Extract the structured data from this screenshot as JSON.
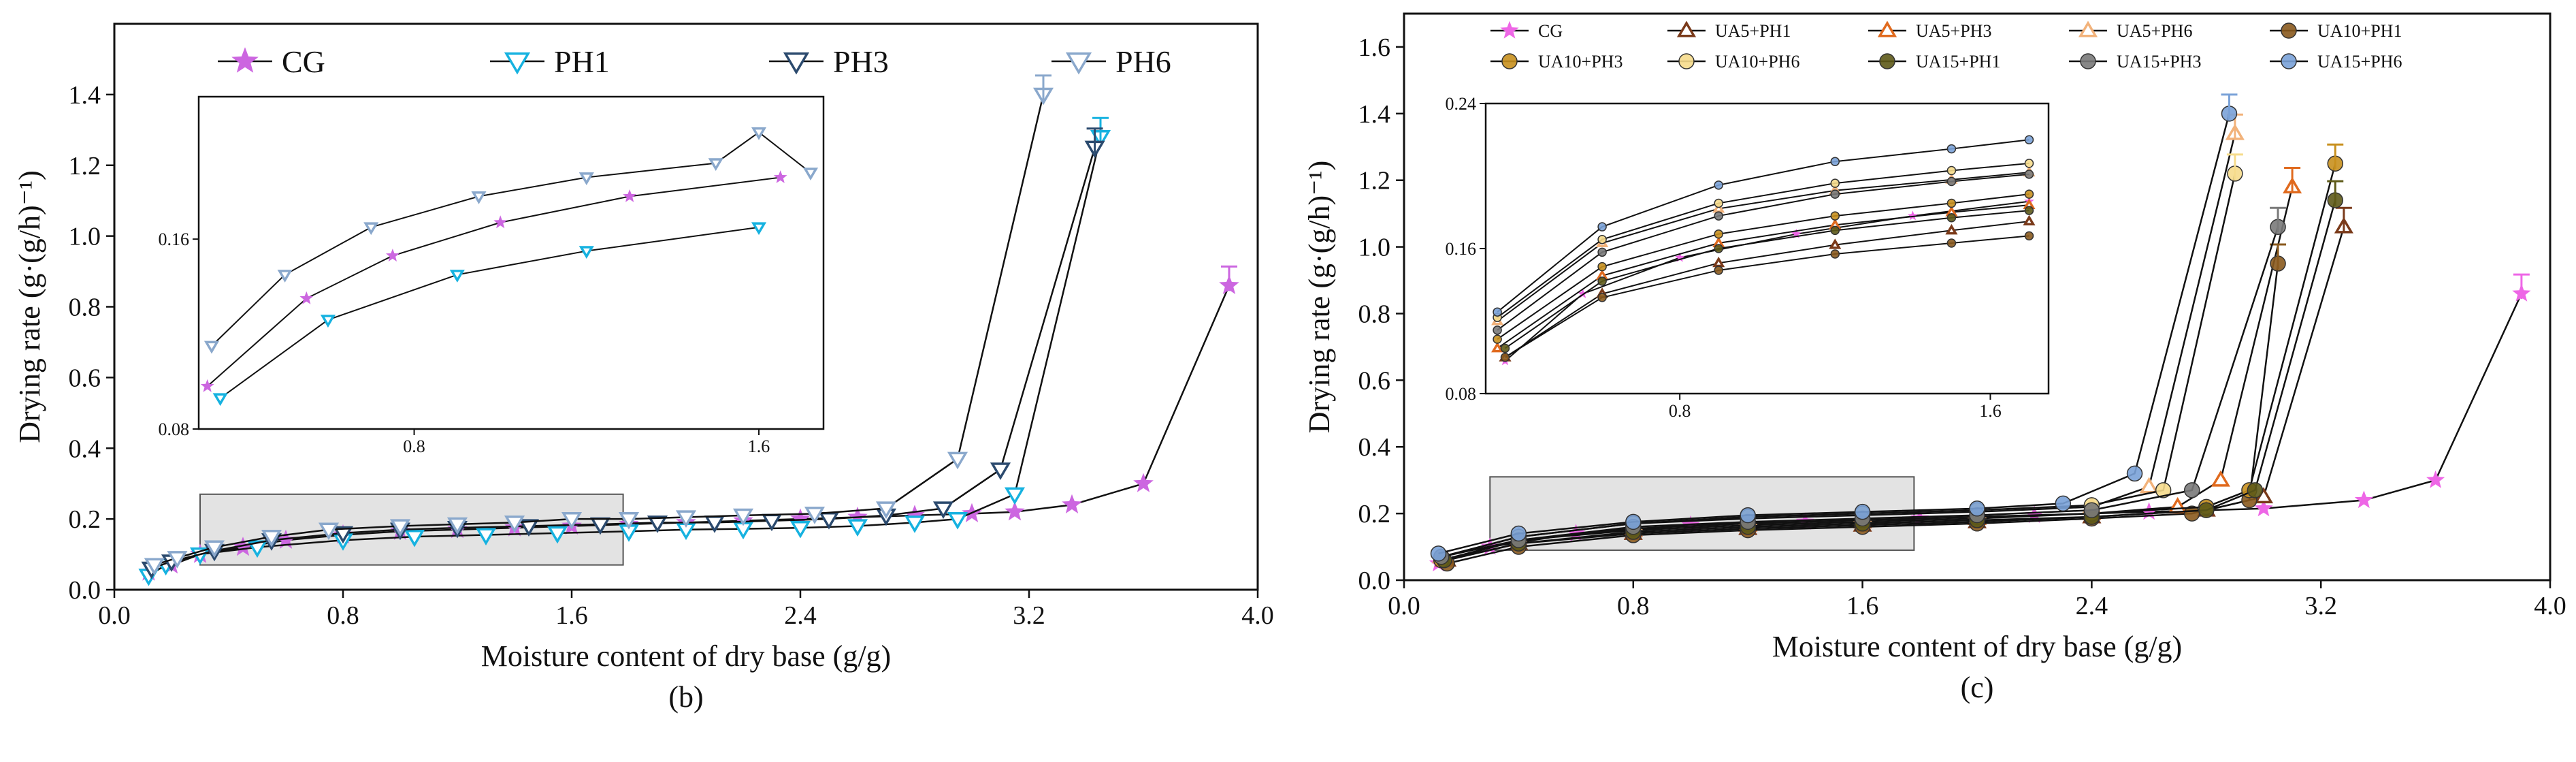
{
  "chart_data": [
    {
      "type": "line",
      "panel_label": "(b)",
      "title": "",
      "xlabel": "Moisture content of dry base (g/g)",
      "ylabel": "Drying rate (g·(g/h)⁻¹)",
      "xlim": [
        0.0,
        4.0
      ],
      "ylim": [
        0.0,
        1.6
      ],
      "xticks": [
        "0.0",
        "0.8",
        "1.6",
        "2.4",
        "3.2",
        "4.0"
      ],
      "yticks": [
        "0.0",
        "0.2",
        "0.4",
        "0.6",
        "0.8",
        "1.0",
        "1.2",
        "1.4"
      ],
      "legend": [
        "CG",
        "PH1",
        "PH3",
        "PH6"
      ],
      "legend_position": "top",
      "series": [
        {
          "name": "CG",
          "color": "#cc66e0",
          "marker": "star",
          "x": [
            0.12,
            0.2,
            0.3,
            0.45,
            0.6,
            0.8,
            1.0,
            1.2,
            1.4,
            1.6,
            1.8,
            2.0,
            2.2,
            2.4,
            2.6,
            2.8,
            3.0,
            3.15,
            3.35,
            3.6,
            3.9
          ],
          "y": [
            0.05,
            0.07,
            0.1,
            0.12,
            0.14,
            0.155,
            0.165,
            0.17,
            0.175,
            0.18,
            0.185,
            0.19,
            0.195,
            0.2,
            0.205,
            0.21,
            0.215,
            0.22,
            0.24,
            0.3,
            0.86
          ]
        },
        {
          "name": "PH1",
          "color": "#16b2e0",
          "marker": "triangle-down",
          "x": [
            0.12,
            0.18,
            0.3,
            0.5,
            0.8,
            1.05,
            1.3,
            1.55,
            1.8,
            2.0,
            2.2,
            2.4,
            2.6,
            2.8,
            2.95,
            3.15,
            3.45
          ],
          "y": [
            0.04,
            0.07,
            0.1,
            0.12,
            0.14,
            0.15,
            0.155,
            0.16,
            0.165,
            0.17,
            0.172,
            0.175,
            0.18,
            0.19,
            0.2,
            0.27,
            1.28
          ]
        },
        {
          "name": "PH3",
          "color": "#2b4a6e",
          "marker": "triangle-down",
          "x": [
            0.13,
            0.2,
            0.35,
            0.55,
            0.8,
            1.0,
            1.2,
            1.45,
            1.7,
            1.9,
            2.1,
            2.3,
            2.5,
            2.7,
            2.9,
            3.1,
            3.43
          ],
          "y": [
            0.06,
            0.08,
            0.11,
            0.14,
            0.16,
            0.17,
            0.175,
            0.18,
            0.185,
            0.19,
            0.19,
            0.195,
            0.2,
            0.21,
            0.23,
            0.34,
            1.25
          ]
        },
        {
          "name": "PH6",
          "color": "#8aa8cc",
          "marker": "triangle-down",
          "x": [
            0.14,
            0.22,
            0.35,
            0.55,
            0.75,
            1.0,
            1.2,
            1.4,
            1.6,
            1.8,
            2.0,
            2.2,
            2.45,
            2.7,
            2.95,
            3.25
          ],
          "y": [
            0.07,
            0.09,
            0.12,
            0.15,
            0.17,
            0.18,
            0.185,
            0.19,
            0.2,
            0.2,
            0.205,
            0.21,
            0.215,
            0.23,
            0.37,
            1.4
          ]
        }
      ],
      "inset": {
        "xlim": [
          0.3,
          1.75
        ],
        "ylim": [
          0.08,
          0.22
        ],
        "xticks": [
          "0.8",
          "1.6"
        ],
        "yticks": [
          "0.08",
          "0.16"
        ],
        "series": [
          {
            "name": "CG",
            "x": [
              0.32,
              0.55,
              0.75,
              1.0,
              1.3,
              1.65
            ],
            "y": [
              0.098,
              0.135,
              0.153,
              0.167,
              0.178,
              0.186
            ]
          },
          {
            "name": "PH1",
            "x": [
              0.35,
              0.6,
              0.9,
              1.2,
              1.6
            ],
            "y": [
              0.093,
              0.126,
              0.145,
              0.155,
              0.165
            ]
          },
          {
            "name": "PH6",
            "x": [
              0.33,
              0.5,
              0.7,
              0.95,
              1.2,
              1.5,
              1.6,
              1.72
            ],
            "y": [
              0.115,
              0.145,
              0.165,
              0.178,
              0.186,
              0.192,
              0.205,
              0.188
            ]
          }
        ]
      }
    },
    {
      "type": "line",
      "panel_label": "(c)",
      "title": "",
      "xlabel": "Moisture content of dry base (g/g)",
      "ylabel": "Drying rate (g·(g/h)⁻¹)",
      "xlim": [
        0.0,
        4.0
      ],
      "ylim": [
        0.0,
        1.7
      ],
      "xticks": [
        "0.0",
        "0.8",
        "1.6",
        "2.4",
        "3.2",
        "4.0"
      ],
      "yticks": [
        "0.0",
        "0.2",
        "0.4",
        "0.6",
        "0.8",
        "1.0",
        "1.2",
        "1.4",
        "1.6"
      ],
      "legend": [
        "CG",
        "UA5+PH1",
        "UA5+PH3",
        "UA5+PH6",
        "UA10+PH1",
        "UA10+PH3",
        "UA10+PH6",
        "UA15+PH1",
        "UA15+PH3",
        "UA15+PH6"
      ],
      "legend_position": "top",
      "series": [
        {
          "name": "CG",
          "color": "#ee66e6",
          "marker": "star",
          "x": [
            0.12,
            0.3,
            0.6,
            1.0,
            1.4,
            1.8,
            2.2,
            2.6,
            3.0,
            3.35,
            3.6,
            3.9
          ],
          "y": [
            0.05,
            0.1,
            0.14,
            0.165,
            0.175,
            0.185,
            0.195,
            0.205,
            0.215,
            0.24,
            0.3,
            0.86
          ]
        },
        {
          "name": "UA5+PH1",
          "color": "#7a3a1a",
          "marker": "triangle-up",
          "x": [
            0.15,
            0.4,
            0.8,
            1.2,
            1.6,
            2.0,
            2.4,
            2.8,
            3.0,
            3.28
          ],
          "y": [
            0.06,
            0.11,
            0.14,
            0.155,
            0.165,
            0.175,
            0.19,
            0.21,
            0.25,
            1.06
          ]
        },
        {
          "name": "UA5+PH3",
          "color": "#e06a1e",
          "marker": "triangle-up",
          "x": [
            0.14,
            0.4,
            0.8,
            1.2,
            1.6,
            2.0,
            2.4,
            2.7,
            2.85,
            3.1
          ],
          "y": [
            0.06,
            0.12,
            0.15,
            0.165,
            0.175,
            0.185,
            0.2,
            0.22,
            0.3,
            1.18
          ]
        },
        {
          "name": "UA5+PH6",
          "color": "#f2b27a",
          "marker": "triangle-up",
          "x": [
            0.13,
            0.4,
            0.8,
            1.2,
            1.6,
            2.0,
            2.4,
            2.6,
            2.9
          ],
          "y": [
            0.07,
            0.13,
            0.17,
            0.185,
            0.195,
            0.205,
            0.22,
            0.28,
            1.34
          ]
        },
        {
          "name": "UA10+PH1",
          "color": "#8a5a1e",
          "marker": "circle",
          "x": [
            0.15,
            0.4,
            0.8,
            1.2,
            1.6,
            2.0,
            2.4,
            2.75,
            2.95,
            3.05
          ],
          "y": [
            0.05,
            0.1,
            0.135,
            0.15,
            0.16,
            0.17,
            0.185,
            0.2,
            0.24,
            0.95
          ]
        },
        {
          "name": "UA10+PH3",
          "color": "#c8901e",
          "marker": "circle",
          "x": [
            0.13,
            0.4,
            0.8,
            1.2,
            1.6,
            2.0,
            2.4,
            2.8,
            2.95,
            3.25
          ],
          "y": [
            0.06,
            0.12,
            0.155,
            0.17,
            0.18,
            0.19,
            0.2,
            0.22,
            0.27,
            1.25
          ]
        },
        {
          "name": "UA10+PH6",
          "color": "#f6dc8c",
          "marker": "circle",
          "x": [
            0.13,
            0.4,
            0.8,
            1.2,
            1.6,
            2.0,
            2.4,
            2.65,
            2.9
          ],
          "y": [
            0.07,
            0.13,
            0.17,
            0.19,
            0.2,
            0.21,
            0.225,
            0.27,
            1.22
          ]
        },
        {
          "name": "UA15+PH1",
          "color": "#5e5a18",
          "marker": "circle",
          "x": [
            0.14,
            0.4,
            0.8,
            1.2,
            1.6,
            2.0,
            2.4,
            2.8,
            2.97,
            3.25
          ],
          "y": [
            0.06,
            0.11,
            0.145,
            0.16,
            0.17,
            0.18,
            0.19,
            0.21,
            0.27,
            1.14
          ]
        },
        {
          "name": "UA15+PH3",
          "color": "#7a7a7a",
          "marker": "circle",
          "x": [
            0.13,
            0.4,
            0.8,
            1.2,
            1.6,
            2.0,
            2.4,
            2.75,
            3.05
          ],
          "y": [
            0.07,
            0.12,
            0.16,
            0.175,
            0.185,
            0.195,
            0.21,
            0.27,
            1.06
          ]
        },
        {
          "name": "UA15+PH6",
          "color": "#7aa2d8",
          "marker": "circle",
          "x": [
            0.12,
            0.4,
            0.8,
            1.2,
            1.6,
            2.0,
            2.3,
            2.55,
            2.88
          ],
          "y": [
            0.08,
            0.14,
            0.175,
            0.195,
            0.205,
            0.215,
            0.23,
            0.32,
            1.4
          ]
        }
      ],
      "inset": {
        "xlim": [
          0.3,
          1.75
        ],
        "ylim": [
          0.08,
          0.24
        ],
        "xticks": [
          "0.8",
          "1.6"
        ],
        "yticks": [
          "0.08",
          "0.16",
          "0.24"
        ],
        "series": [
          {
            "name": "CG",
            "x": [
              0.35,
              0.55,
              0.8,
              1.1,
              1.4,
              1.7
            ],
            "y": [
              0.098,
              0.135,
              0.155,
              0.168,
              0.178,
              0.186
            ]
          },
          {
            "name": "UA5+PH1",
            "x": [
              0.35,
              0.6,
              0.9,
              1.2,
              1.5,
              1.7
            ],
            "y": [
              0.1,
              0.135,
              0.152,
              0.162,
              0.17,
              0.175
            ]
          },
          {
            "name": "UA5+PH3",
            "x": [
              0.33,
              0.6,
              0.9,
              1.2,
              1.5,
              1.7
            ],
            "y": [
              0.105,
              0.145,
              0.163,
              0.173,
              0.18,
              0.184
            ]
          },
          {
            "name": "UA5+PH6",
            "x": [
              0.33,
              0.6,
              0.9,
              1.2,
              1.5,
              1.7
            ],
            "y": [
              0.12,
              0.163,
              0.182,
              0.192,
              0.198,
              0.202
            ]
          },
          {
            "name": "UA10+PH1",
            "x": [
              0.35,
              0.6,
              0.9,
              1.2,
              1.5,
              1.7
            ],
            "y": [
              0.1,
              0.133,
              0.148,
              0.157,
              0.163,
              0.167
            ]
          },
          {
            "name": "UA10+PH3",
            "x": [
              0.33,
              0.6,
              0.9,
              1.2,
              1.5,
              1.7
            ],
            "y": [
              0.11,
              0.15,
              0.168,
              0.178,
              0.185,
              0.19
            ]
          },
          {
            "name": "UA10+PH6",
            "x": [
              0.33,
              0.6,
              0.9,
              1.2,
              1.5,
              1.7
            ],
            "y": [
              0.122,
              0.165,
              0.185,
              0.196,
              0.203,
              0.207
            ]
          },
          {
            "name": "UA15+PH1",
            "x": [
              0.35,
              0.6,
              0.9,
              1.2,
              1.5,
              1.7
            ],
            "y": [
              0.105,
              0.142,
              0.16,
              0.17,
              0.177,
              0.181
            ]
          },
          {
            "name": "UA15+PH3",
            "x": [
              0.33,
              0.6,
              0.9,
              1.2,
              1.5,
              1.7
            ],
            "y": [
              0.115,
              0.158,
              0.178,
              0.19,
              0.197,
              0.201
            ]
          },
          {
            "name": "UA15+PH6",
            "x": [
              0.33,
              0.6,
              0.9,
              1.2,
              1.5,
              1.7
            ],
            "y": [
              0.125,
              0.172,
              0.195,
              0.208,
              0.215,
              0.22
            ]
          }
        ]
      }
    }
  ]
}
